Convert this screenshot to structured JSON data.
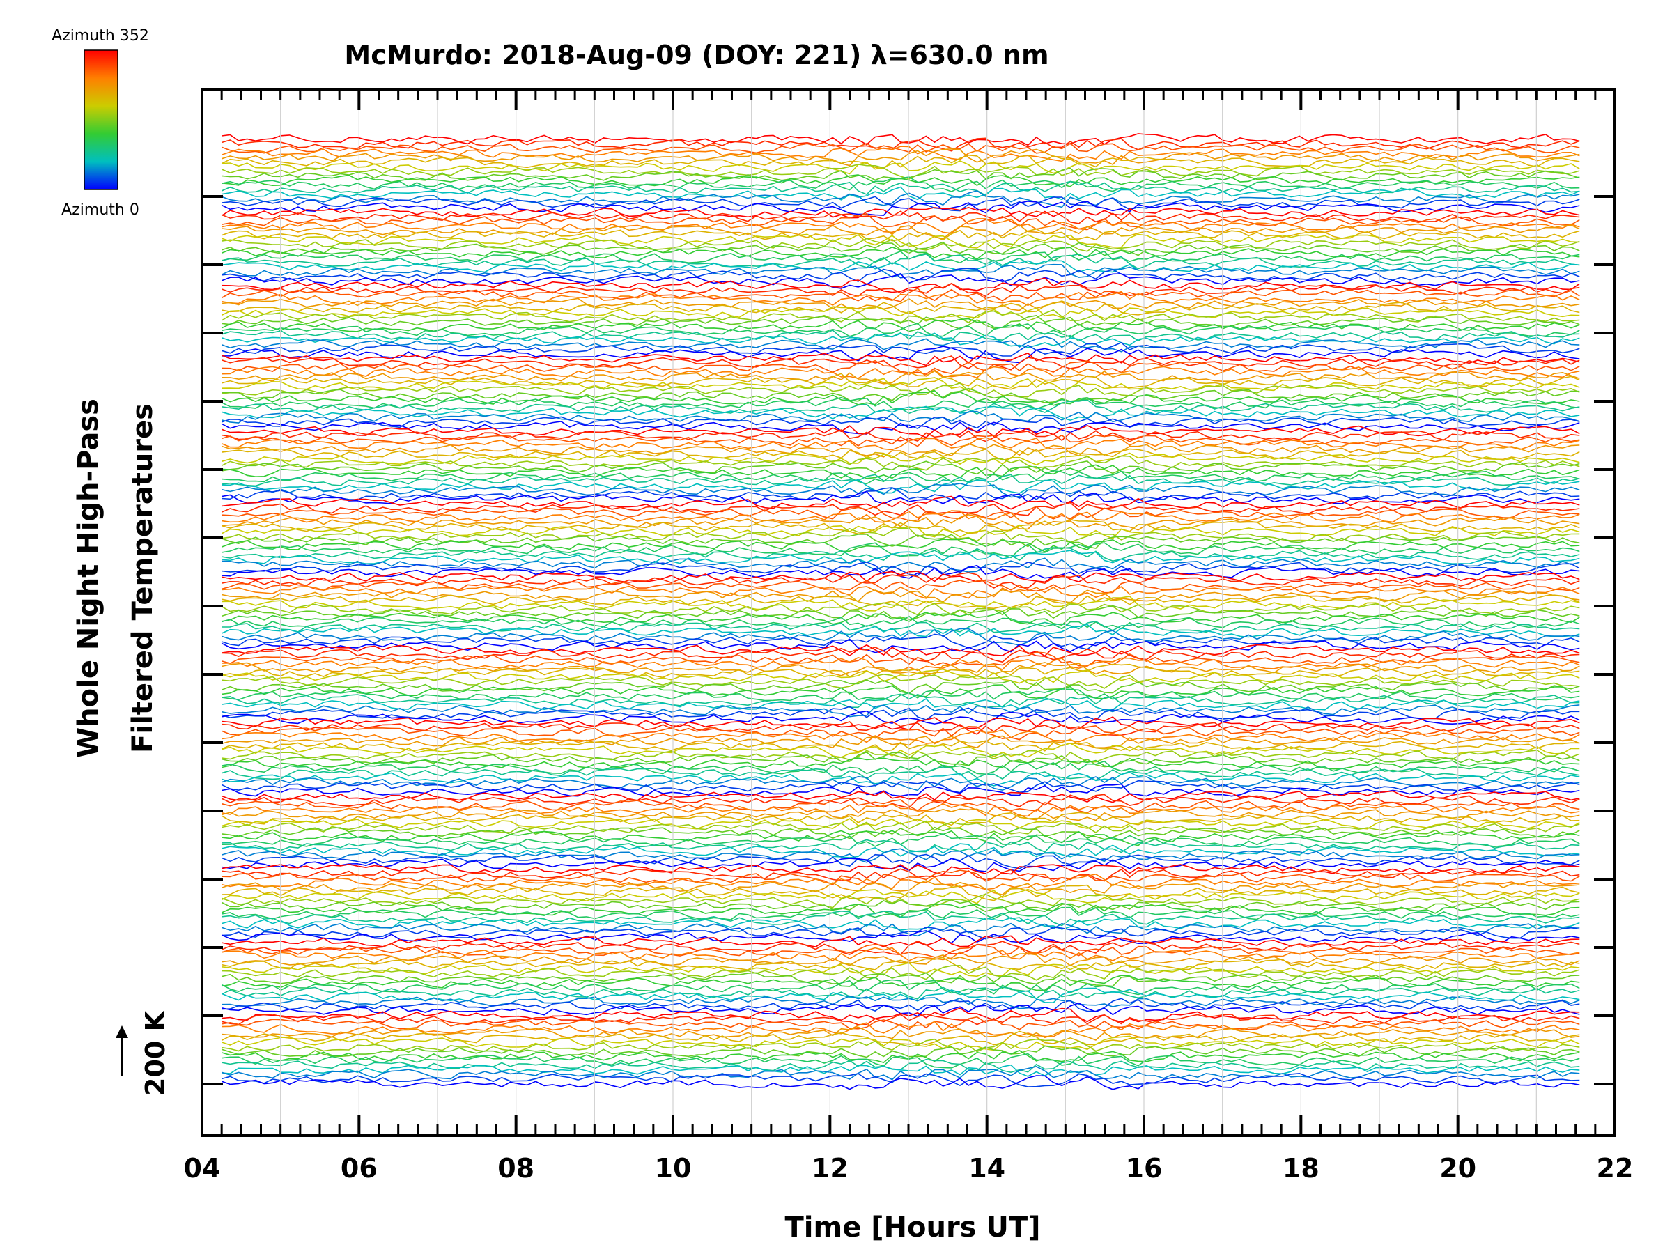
{
  "chart_data": {
    "type": "line",
    "title": "McMurdo: 2018-Aug-09 (DOY: 221) λ=630.0 nm",
    "xlabel": "Time [Hours UT]",
    "ylabel_line1": "Whole Night High-Pass",
    "ylabel_line2": "Filtered Temperatures",
    "xlim": [
      4,
      22
    ],
    "x_ticks": [
      "04",
      "06",
      "08",
      "10",
      "12",
      "14",
      "16",
      "18",
      "20",
      "22"
    ],
    "x_minor_step": 0.25,
    "time_range": [
      4.25,
      21.55
    ],
    "y_ticks_count": 14,
    "grid": true,
    "scale_bar_label": "200 K",
    "colorbar": {
      "top_label": "Azimuth 352",
      "bottom_label": "Azimuth 0",
      "colors": [
        "#0000ff",
        "#00bfbf",
        "#33cc33",
        "#cccc00",
        "#ff7f00",
        "#ff0000"
      ]
    },
    "elevation_groups": 13,
    "azimuths_per_group": 16,
    "trace_description": "high-pass filtered temperature traces per azimuth, stacked with vertical offsets; colour encodes azimuth"
  }
}
